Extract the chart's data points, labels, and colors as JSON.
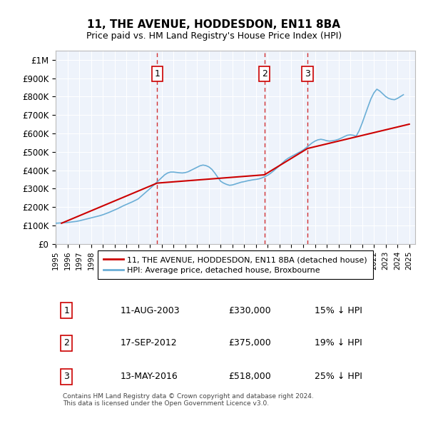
{
  "title": "11, THE AVENUE, HODDESDON, EN11 8BA",
  "subtitle": "Price paid vs. HM Land Registry's House Price Index (HPI)",
  "background_color": "#eef3fb",
  "plot_background": "#eef3fb",
  "ylabel": "",
  "ylim": [
    0,
    1050000
  ],
  "yticks": [
    0,
    100000,
    200000,
    300000,
    400000,
    500000,
    600000,
    700000,
    800000,
    900000,
    1000000
  ],
  "ytick_labels": [
    "£0",
    "£100K",
    "£200K",
    "£300K",
    "£400K",
    "£500K",
    "£600K",
    "£700K",
    "£800K",
    "£900K",
    "£1M"
  ],
  "xlim_start": 1995.0,
  "xlim_end": 2025.5,
  "xticks": [
    1995,
    1996,
    1997,
    1998,
    1999,
    2000,
    2001,
    2002,
    2003,
    2004,
    2005,
    2006,
    2007,
    2008,
    2009,
    2010,
    2011,
    2012,
    2013,
    2014,
    2015,
    2016,
    2017,
    2018,
    2019,
    2020,
    2021,
    2022,
    2023,
    2024,
    2025
  ],
  "hpi_color": "#6baed6",
  "price_color": "#cc0000",
  "vline_color": "#cc0000",
  "legend_label_price": "11, THE AVENUE, HODDESDON, EN11 8BA (detached house)",
  "legend_label_hpi": "HPI: Average price, detached house, Broxbourne",
  "transactions": [
    {
      "num": 1,
      "date": "11-AUG-2003",
      "price": 330000,
      "pct": "15%",
      "x": 2003.61
    },
    {
      "num": 2,
      "date": "17-SEP-2012",
      "price": 375000,
      "pct": "19%",
      "x": 2012.71
    },
    {
      "num": 3,
      "date": "13-MAY-2016",
      "price": 518000,
      "pct": "25%",
      "x": 2016.37
    }
  ],
  "footnote": "Contains HM Land Registry data © Crown copyright and database right 2024.\nThis data is licensed under the Open Government Licence v3.0.",
  "hpi_data_x": [
    1995.0,
    1995.25,
    1995.5,
    1995.75,
    1996.0,
    1996.25,
    1996.5,
    1996.75,
    1997.0,
    1997.25,
    1997.5,
    1997.75,
    1998.0,
    1998.25,
    1998.5,
    1998.75,
    1999.0,
    1999.25,
    1999.5,
    1999.75,
    2000.0,
    2000.25,
    2000.5,
    2000.75,
    2001.0,
    2001.25,
    2001.5,
    2001.75,
    2002.0,
    2002.25,
    2002.5,
    2002.75,
    2003.0,
    2003.25,
    2003.5,
    2003.75,
    2004.0,
    2004.25,
    2004.5,
    2004.75,
    2005.0,
    2005.25,
    2005.5,
    2005.75,
    2006.0,
    2006.25,
    2006.5,
    2006.75,
    2007.0,
    2007.25,
    2007.5,
    2007.75,
    2008.0,
    2008.25,
    2008.5,
    2008.75,
    2009.0,
    2009.25,
    2009.5,
    2009.75,
    2010.0,
    2010.25,
    2010.5,
    2010.75,
    2011.0,
    2011.25,
    2011.5,
    2011.75,
    2012.0,
    2012.25,
    2012.5,
    2012.75,
    2013.0,
    2013.25,
    2013.5,
    2013.75,
    2014.0,
    2014.25,
    2014.5,
    2014.75,
    2015.0,
    2015.25,
    2015.5,
    2015.75,
    2016.0,
    2016.25,
    2016.5,
    2016.75,
    2017.0,
    2017.25,
    2017.5,
    2017.75,
    2018.0,
    2018.25,
    2018.5,
    2018.75,
    2019.0,
    2019.25,
    2019.5,
    2019.75,
    2020.0,
    2020.25,
    2020.5,
    2020.75,
    2021.0,
    2021.25,
    2021.5,
    2021.75,
    2022.0,
    2022.25,
    2022.5,
    2022.75,
    2023.0,
    2023.25,
    2023.5,
    2023.75,
    2024.0,
    2024.25,
    2024.5
  ],
  "hpi_data_y": [
    112000,
    113000,
    114000,
    115000,
    116000,
    118000,
    120000,
    122000,
    125000,
    129000,
    133000,
    137000,
    141000,
    145000,
    149000,
    153000,
    158000,
    164000,
    170000,
    177000,
    184000,
    191000,
    199000,
    207000,
    214000,
    221000,
    228000,
    236000,
    244000,
    258000,
    272000,
    286000,
    300000,
    315000,
    330000,
    345000,
    360000,
    375000,
    385000,
    390000,
    390000,
    388000,
    386000,
    385000,
    387000,
    392000,
    400000,
    408000,
    416000,
    424000,
    428000,
    425000,
    418000,
    405000,
    385000,
    362000,
    340000,
    330000,
    323000,
    318000,
    320000,
    325000,
    330000,
    335000,
    338000,
    342000,
    345000,
    348000,
    350000,
    353000,
    358000,
    365000,
    373000,
    384000,
    397000,
    411000,
    425000,
    440000,
    455000,
    466000,
    475000,
    483000,
    492000,
    500000,
    510000,
    522000,
    535000,
    548000,
    558000,
    565000,
    568000,
    565000,
    560000,
    558000,
    560000,
    563000,
    568000,
    575000,
    583000,
    590000,
    592000,
    590000,
    585000,
    615000,
    655000,
    700000,
    745000,
    788000,
    820000,
    840000,
    830000,
    815000,
    800000,
    790000,
    785000,
    783000,
    790000,
    800000,
    810000
  ],
  "price_data_x": [
    1995.5,
    2003.61,
    2012.71,
    2016.37,
    2025.0
  ],
  "price_data_y": [
    112000,
    330000,
    375000,
    518000,
    650000
  ]
}
